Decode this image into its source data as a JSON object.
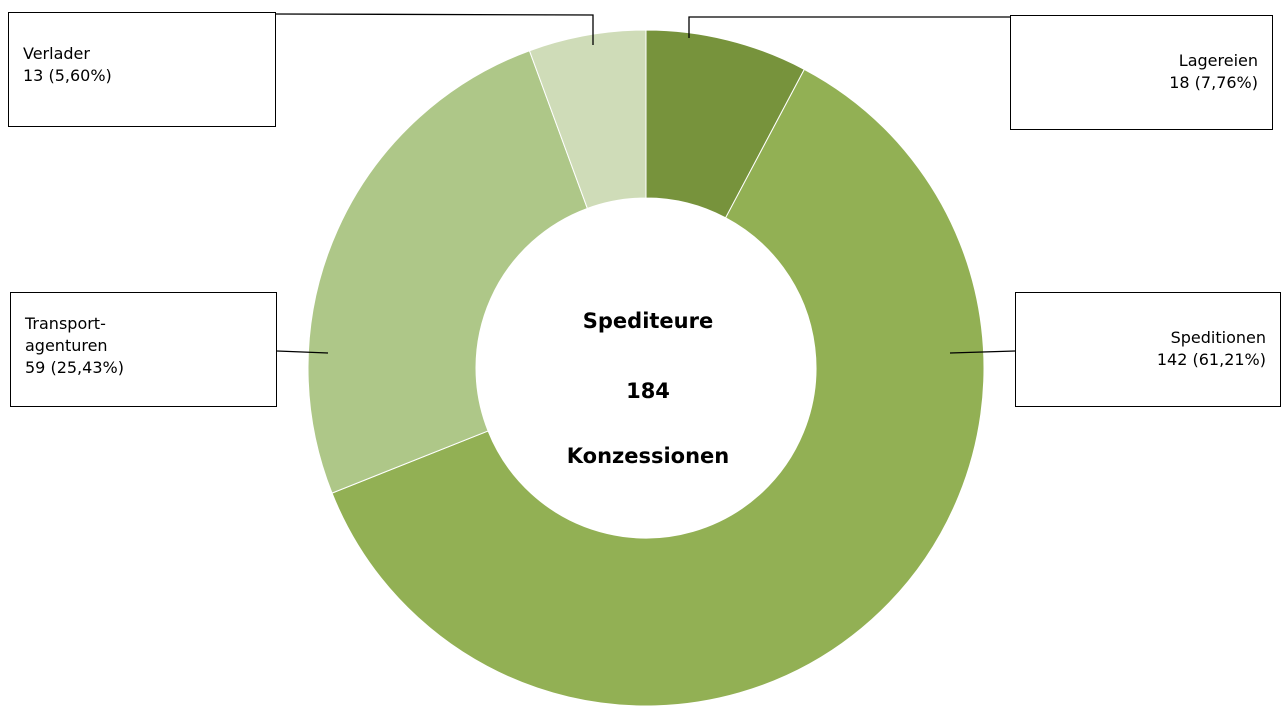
{
  "chart_data": {
    "type": "donut",
    "center_text": [
      "Spediteure",
      "184",
      "Konzessionen"
    ],
    "categories": [
      "Lagereien",
      "Speditionen",
      "Transport-\nagenturen",
      "Verlader"
    ],
    "values": [
      18,
      142,
      59,
      13
    ],
    "value_labels": [
      "18 (7,76%)",
      "142 (61,21%)",
      "59 (25,43%)",
      "13 (5,60%)"
    ],
    "colors": [
      "#77933c",
      "#92b054",
      "#aec788",
      "#cfdcb8"
    ]
  }
}
